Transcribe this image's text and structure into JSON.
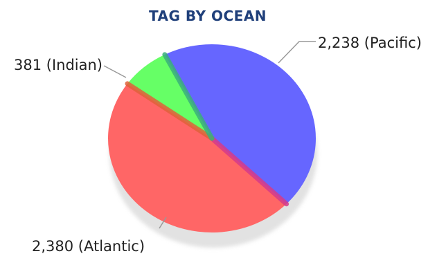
{
  "chart_data": {
    "type": "pie",
    "title": "TAG BY OCEAN",
    "title_color": "#1f3f7a",
    "slices": [
      {
        "name": "Pacific",
        "value": 2238,
        "label": "2,238 (Pacific)",
        "color": "#6666ff",
        "edge": "#d63a8a"
      },
      {
        "name": "Atlantic",
        "value": 2380,
        "label": "2,380 (Atlantic)",
        "color": "#ff6666",
        "edge": "#e0623a"
      },
      {
        "name": "Indian",
        "value": 381,
        "label": "381 (Indian)",
        "color": "#66ff66",
        "edge": "#3ab07a"
      }
    ],
    "legend": "none",
    "label_placement": "outside-with-leader-lines"
  }
}
